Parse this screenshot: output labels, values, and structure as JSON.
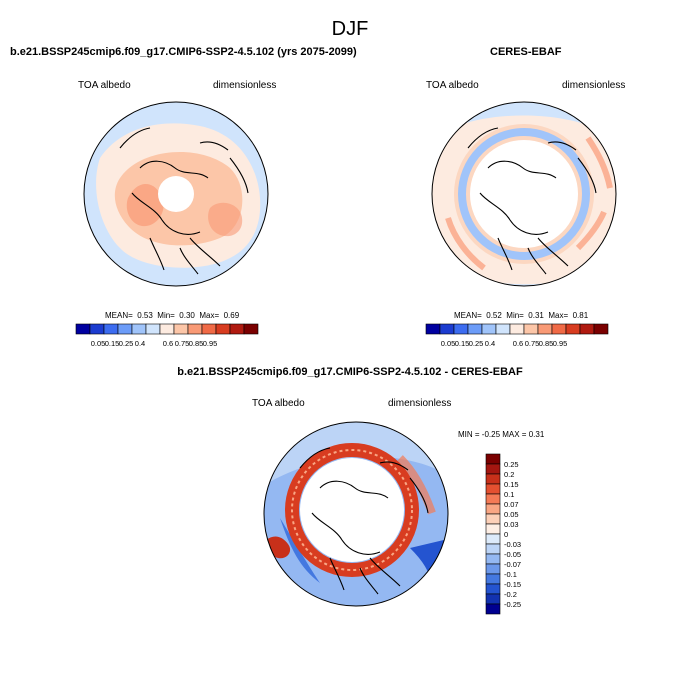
{
  "page": {
    "title": "DJF"
  },
  "panels": [
    {
      "title": "b.e21.BSSP245cmip6.f09_g17.CMIP6-SSP2-4.5.102 (yrs 2075-2099)",
      "variable": "TOA albedo",
      "units": "dimensionless",
      "stats": {
        "mean_label": "MEAN=",
        "mean": "0.53",
        "min_label": "Min=",
        "min": "0.30",
        "max_label": "Max=",
        "max": "0.69"
      }
    },
    {
      "title": "CERES-EBAF",
      "variable": "TOA albedo",
      "units": "dimensionless",
      "stats": {
        "mean_label": "MEAN=",
        "mean": "0.52",
        "min_label": "Min=",
        "min": "0.31",
        "max_label": "Max=",
        "max": "0.81"
      }
    },
    {
      "title": "b.e21.BSSP245cmip6.f09_g17.CMIP6-SSP2-4.5.102 - CERES-EBAF",
      "variable": "TOA albedo",
      "units": "dimensionless",
      "stats_text": "MIN = -0.25 MAX = 0.31"
    }
  ],
  "colorbars": {
    "albedo": {
      "colors": [
        "#0000a0",
        "#1c3cd0",
        "#3c6cf0",
        "#6c9cf8",
        "#a0c4fa",
        "#d0e4fc",
        "#fdebe0",
        "#fcc6a8",
        "#f99a76",
        "#f06a46",
        "#d83c20",
        "#b01a10",
        "#7a0000"
      ],
      "labels": [
        "0.05",
        "0.15",
        "0.25",
        "0.4",
        "0.6",
        "0.75",
        "0.85",
        "0.95"
      ]
    },
    "difference": {
      "colors": [
        "#7a0000",
        "#a41610",
        "#c8301a",
        "#e45030",
        "#f47a56",
        "#f9a684",
        "#fcd0b8",
        "#fdeee4",
        "#dceafa",
        "#bcd4f6",
        "#94b8f2",
        "#6c98ea",
        "#4478e0",
        "#2454d0",
        "#1232b0",
        "#000090"
      ],
      "labels": [
        "0.25",
        "0.2",
        "0.15",
        "0.1",
        "0.07",
        "0.05",
        "0.03",
        "0",
        "-0.03",
        "-0.05",
        "-0.07",
        "-0.1",
        "-0.15",
        "-0.2",
        "-0.25"
      ]
    }
  },
  "chart_data": [
    {
      "type": "heatmap",
      "map_kind": "polar-north",
      "title": "b.e21.BSSP245cmip6.f09_g17.CMIP6-SSP2-4.5.102 (yrs 2075-2099)",
      "variable": "TOA albedo",
      "units": "dimensionless",
      "mean": 0.53,
      "min": 0.3,
      "max": 0.69,
      "levels": [
        0.05,
        0.15,
        0.25,
        0.4,
        0.6,
        0.75,
        0.85,
        0.95
      ]
    },
    {
      "type": "heatmap",
      "map_kind": "polar-north",
      "title": "CERES-EBAF",
      "variable": "TOA albedo",
      "units": "dimensionless",
      "mean": 0.52,
      "min": 0.31,
      "max": 0.81,
      "levels": [
        0.05,
        0.15,
        0.25,
        0.4,
        0.6,
        0.75,
        0.85,
        0.95
      ]
    },
    {
      "type": "heatmap",
      "map_kind": "polar-north",
      "title": "b.e21.BSSP245cmip6.f09_g17.CMIP6-SSP2-4.5.102 - CERES-EBAF",
      "variable": "TOA albedo",
      "units": "dimensionless",
      "min": -0.25,
      "max": 0.31,
      "levels": [
        0.25,
        0.2,
        0.15,
        0.1,
        0.07,
        0.05,
        0.03,
        0,
        -0.03,
        -0.05,
        -0.07,
        -0.1,
        -0.15,
        -0.2,
        -0.25
      ]
    }
  ]
}
